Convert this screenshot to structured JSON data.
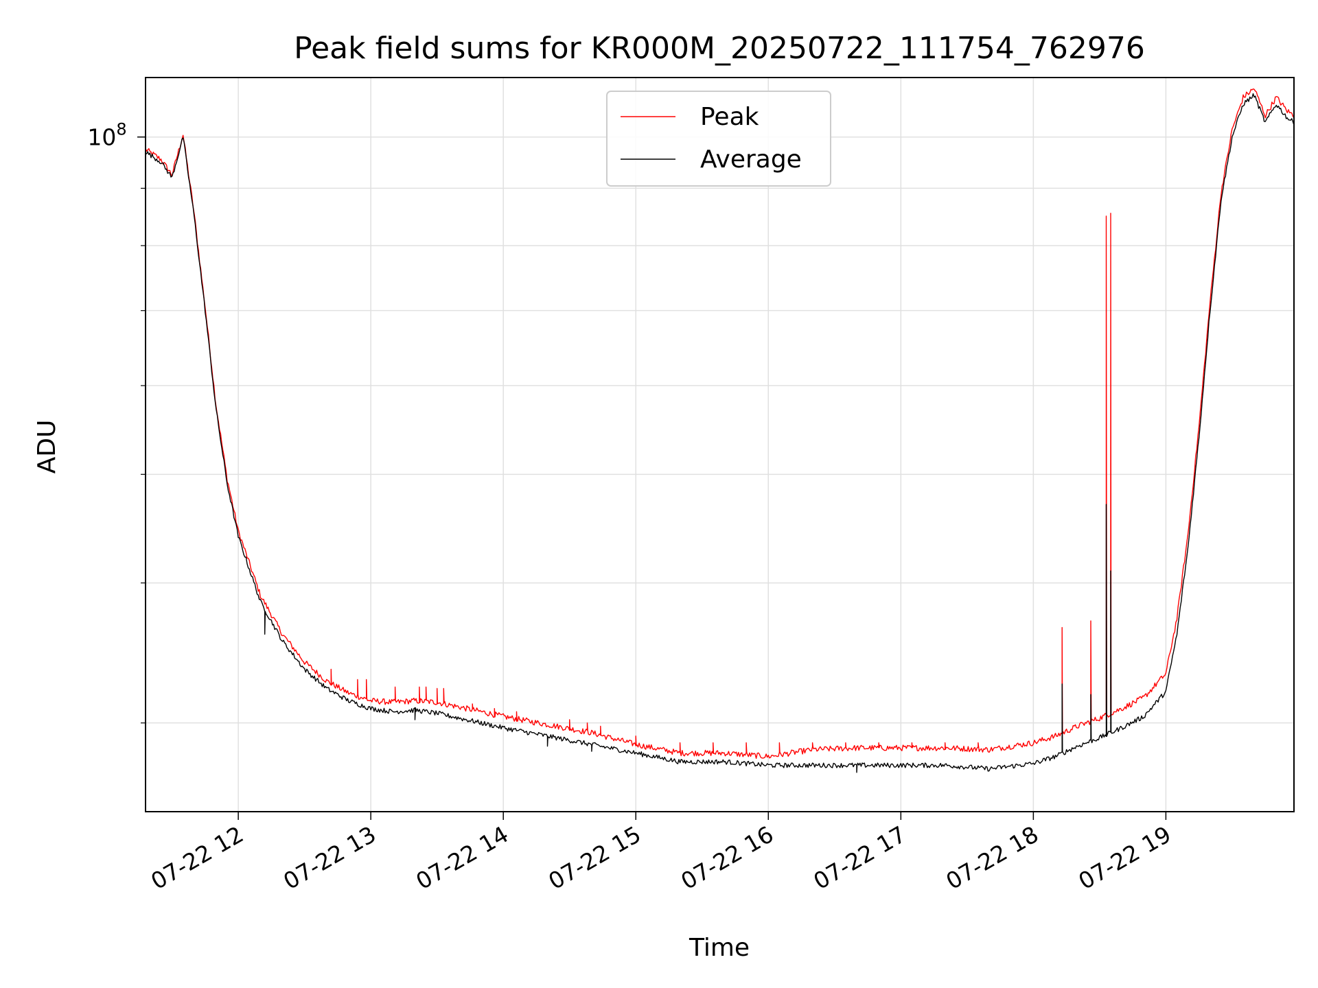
{
  "chart_data": {
    "type": "line",
    "title": "Peak field sums for KR000M_20250722_111754_762976",
    "xlabel": "Time",
    "ylabel": "ADU",
    "y_scale": "log",
    "y_tick_label": {
      "base": "10",
      "exponent": "8"
    },
    "x_tick_labels": [
      "07-22 12",
      "07-22 13",
      "07-22 14",
      "07-22 15",
      "07-22 16",
      "07-22 17",
      "07-22 18",
      "07-22 19"
    ],
    "x_ticks": [
      "2025-07-22T12:00",
      "2025-07-22T13:00",
      "2025-07-22T14:00",
      "2025-07-22T15:00",
      "2025-07-22T16:00",
      "2025-07-22T17:00",
      "2025-07-22T18:00",
      "2025-07-22T19:00"
    ],
    "xlim": [
      "2025-07-22T11:18",
      "2025-07-22T19:58"
    ],
    "ylim": [
      25000000,
      113000000
    ],
    "y_major_ticks": [
      100000000
    ],
    "y_minor_ticks": [
      30000000,
      40000000,
      50000000,
      60000000,
      70000000,
      80000000,
      90000000
    ],
    "grid": true,
    "legend": {
      "position": "top-center",
      "entries": [
        "Peak",
        "Average"
      ]
    },
    "series": [
      {
        "name": "Average",
        "color": "#000000",
        "x": [
          "11:18",
          "11:25",
          "11:30",
          "11:35",
          "11:40",
          "11:45",
          "11:50",
          "11:55",
          "12:00",
          "12:10",
          "12:20",
          "12:30",
          "12:40",
          "12:50",
          "13:00",
          "13:10",
          "13:20",
          "13:30",
          "13:40",
          "13:50",
          "14:00",
          "14:20",
          "14:40",
          "15:00",
          "15:20",
          "15:40",
          "16:00",
          "16:20",
          "16:40",
          "17:00",
          "17:20",
          "17:40",
          "18:00",
          "18:10",
          "18:20",
          "18:30",
          "18:40",
          "18:50",
          "19:00",
          "19:05",
          "19:10",
          "19:15",
          "19:20",
          "19:25",
          "19:30",
          "19:35",
          "19:40",
          "19:45",
          "19:50",
          "19:55",
          "19:58"
        ],
        "y": [
          97000000,
          95000000,
          92000000,
          100000000,
          85000000,
          70000000,
          57000000,
          49000000,
          44000000,
          38500000,
          35500000,
          33500000,
          32200000,
          31400000,
          30900000,
          30700000,
          30800000,
          30600000,
          30300000,
          30000000,
          29700000,
          29200000,
          28700000,
          28200000,
          27700000,
          27700000,
          27500000,
          27500000,
          27500000,
          27500000,
          27500000,
          27300000,
          27600000,
          28000000,
          28600000,
          29100000,
          29700000,
          30400000,
          32000000,
          36000000,
          43000000,
          54000000,
          70000000,
          88000000,
          100000000,
          107000000,
          109000000,
          103000000,
          107000000,
          104000000,
          103000000
        ]
      },
      {
        "name": "Peak",
        "color": "#ff0000",
        "x": [
          "11:18",
          "11:25",
          "11:30",
          "11:35",
          "11:40",
          "11:45",
          "11:50",
          "11:55",
          "12:00",
          "12:10",
          "12:20",
          "12:30",
          "12:40",
          "12:50",
          "13:00",
          "13:10",
          "13:20",
          "13:30",
          "13:40",
          "13:50",
          "14:00",
          "14:20",
          "14:40",
          "15:00",
          "15:20",
          "15:40",
          "16:00",
          "16:20",
          "16:40",
          "17:00",
          "17:20",
          "17:40",
          "18:00",
          "18:10",
          "18:20",
          "18:30",
          "18:40",
          "18:50",
          "19:00",
          "19:05",
          "19:10",
          "19:15",
          "19:20",
          "19:25",
          "19:30",
          "19:35",
          "19:40",
          "19:45",
          "19:50",
          "19:55",
          "19:58"
        ],
        "y": [
          97500000,
          95500000,
          92500000,
          100500000,
          85500000,
          70500000,
          57500000,
          49500000,
          44500000,
          39000000,
          36000000,
          34000000,
          32700000,
          31900000,
          31400000,
          31300000,
          31400000,
          31300000,
          31000000,
          30700000,
          30400000,
          29900000,
          29400000,
          28700000,
          28200000,
          28200000,
          28000000,
          28400000,
          28500000,
          28500000,
          28500000,
          28400000,
          28800000,
          29200000,
          29800000,
          30300000,
          30900000,
          31600000,
          33200000,
          37200000,
          44200000,
          55200000,
          71200000,
          89200000,
          101500000,
          108500000,
          110500000,
          104500000,
          108500000,
          105500000,
          104500000
        ]
      }
    ],
    "spikes": {
      "Peak": [
        {
          "x": "12:42",
          "y": 33500000
        },
        {
          "x": "12:54",
          "y": 32800000
        },
        {
          "x": "12:58",
          "y": 32800000
        },
        {
          "x": "13:11",
          "y": 32300000
        },
        {
          "x": "13:22",
          "y": 32300000
        },
        {
          "x": "13:25",
          "y": 32300000
        },
        {
          "x": "13:30",
          "y": 32200000
        },
        {
          "x": "13:33",
          "y": 32200000
        },
        {
          "x": "13:46",
          "y": 31200000
        },
        {
          "x": "13:56",
          "y": 30900000
        },
        {
          "x": "14:06",
          "y": 30700000
        },
        {
          "x": "14:30",
          "y": 30200000
        },
        {
          "x": "14:38",
          "y": 30000000
        },
        {
          "x": "14:44",
          "y": 29800000
        },
        {
          "x": "15:00",
          "y": 29200000
        },
        {
          "x": "15:20",
          "y": 28800000
        },
        {
          "x": "15:35",
          "y": 28800000
        },
        {
          "x": "15:50",
          "y": 28800000
        },
        {
          "x": "16:05",
          "y": 28800000
        },
        {
          "x": "16:20",
          "y": 28800000
        },
        {
          "x": "16:35",
          "y": 28800000
        },
        {
          "x": "16:50",
          "y": 28800000
        },
        {
          "x": "17:05",
          "y": 28800000
        },
        {
          "x": "17:20",
          "y": 28800000
        },
        {
          "x": "17:35",
          "y": 28800000
        },
        {
          "x": "18:13",
          "y": 36500000
        },
        {
          "x": "18:26",
          "y": 37000000
        },
        {
          "x": "18:33",
          "y": 85000000
        },
        {
          "x": "18:35",
          "y": 85500000
        }
      ],
      "Average": [
        {
          "x": "12:12",
          "y": 36000000
        },
        {
          "x": "13:20",
          "y": 30200000
        },
        {
          "x": "14:20",
          "y": 28600000
        },
        {
          "x": "14:40",
          "y": 28300000
        },
        {
          "x": "16:40",
          "y": 27100000
        },
        {
          "x": "18:13",
          "y": 32500000
        },
        {
          "x": "18:26",
          "y": 31800000
        },
        {
          "x": "18:33",
          "y": 47000000
        },
        {
          "x": "18:35",
          "y": 41000000
        }
      ]
    }
  }
}
